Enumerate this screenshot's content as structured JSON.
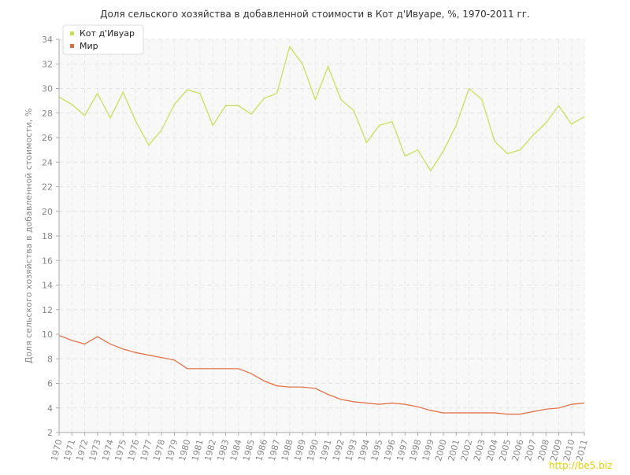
{
  "chart_data": {
    "type": "line",
    "title": "Доля сельского хозяйства в добавленной стоимости в Кот д'Ивуаре, %, 1970-2011 гг.",
    "y_label": "Доля сельского хозяйства в добавленной стоимости, %",
    "categories": [
      "1970",
      "1971",
      "1972",
      "1973",
      "1974",
      "1975",
      "1976",
      "1977",
      "1978",
      "1979",
      "1980",
      "1981",
      "1982",
      "1983",
      "1984",
      "1985",
      "1986",
      "1987",
      "1988",
      "1989",
      "1990",
      "1991",
      "1992",
      "1993",
      "1994",
      "1995",
      "1996",
      "1997",
      "1998",
      "1999",
      "2000",
      "2001",
      "2002",
      "2003",
      "2004",
      "2005",
      "2006",
      "2007",
      "2008",
      "2009",
      "2010",
      "2011"
    ],
    "series": [
      {
        "name": "Кот д'Ивуар",
        "color": "#c4e04a",
        "values": [
          29.3,
          28.7,
          27.8,
          29.6,
          27.6,
          29.7,
          27.3,
          25.4,
          26.6,
          28.7,
          29.9,
          29.6,
          27.0,
          28.6,
          28.6,
          27.9,
          29.2,
          29.6,
          33.4,
          32.0,
          29.1,
          31.8,
          29.1,
          28.2,
          25.6,
          27.0,
          27.3,
          24.5,
          25.0,
          23.3,
          24.9,
          27.0,
          30.0,
          29.1,
          25.7,
          24.7,
          25.0,
          26.2,
          27.2,
          28.6,
          27.1,
          27.7
        ]
      },
      {
        "name": "Мир",
        "color": "#e2693a",
        "values": [
          9.9,
          9.5,
          9.2,
          9.8,
          9.2,
          8.8,
          8.5,
          8.3,
          8.1,
          7.9,
          7.2,
          7.2,
          7.2,
          7.2,
          7.2,
          6.8,
          6.2,
          5.8,
          5.7,
          5.7,
          5.6,
          5.1,
          4.7,
          4.5,
          4.4,
          4.3,
          4.4,
          4.3,
          4.1,
          3.8,
          3.6,
          3.6,
          3.6,
          3.6,
          3.6,
          3.5,
          3.5,
          3.7,
          3.9,
          4.0,
          4.3,
          4.4
        ]
      }
    ],
    "ylim": [
      2,
      34
    ],
    "yticks": [
      2,
      4,
      6,
      8,
      10,
      12,
      14,
      16,
      18,
      20,
      22,
      24,
      26,
      28,
      30,
      32,
      34
    ],
    "grid": true,
    "legend": "top-left",
    "watermark": "http://be5.biz"
  }
}
